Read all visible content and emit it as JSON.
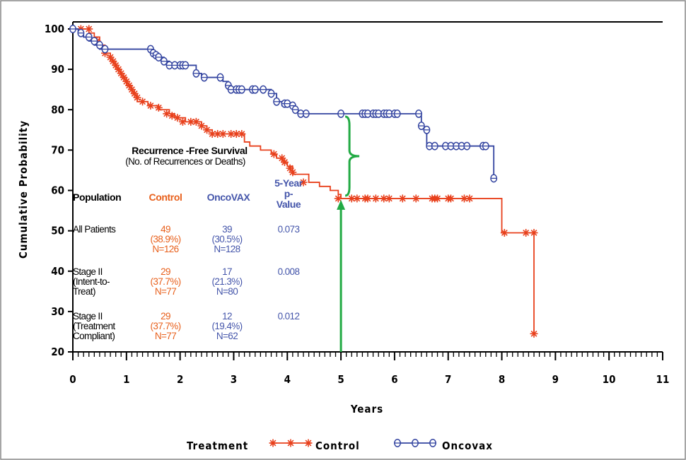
{
  "chart_data": {
    "type": "line",
    "subtype": "kaplan-meier step curve",
    "ylabel": "Cumulative Probability",
    "xlabel": "Years",
    "xlim": [
      0,
      11
    ],
    "ylim": [
      20,
      100
    ],
    "x_ticks": [
      "0",
      "1",
      "2",
      "3",
      "4",
      "5",
      "6",
      "7",
      "8",
      "9",
      "10",
      "11"
    ],
    "y_ticks": [
      "20",
      "30",
      "40",
      "50",
      "60",
      "70",
      "80",
      "90",
      "100"
    ],
    "grid": false,
    "legend_title": "Treatment",
    "series": [
      {
        "name": "Control",
        "color": "#e8401c",
        "marker": "asterisk",
        "steps": [
          [
            0,
            100
          ],
          [
            0.3,
            99
          ],
          [
            0.4,
            98
          ],
          [
            0.5,
            96
          ],
          [
            0.6,
            94
          ],
          [
            0.7,
            92
          ],
          [
            0.8,
            90
          ],
          [
            0.9,
            88
          ],
          [
            1.0,
            86
          ],
          [
            1.1,
            84
          ],
          [
            1.2,
            82
          ],
          [
            1.4,
            81
          ],
          [
            1.6,
            80
          ],
          [
            1.8,
            79
          ],
          [
            1.9,
            78
          ],
          [
            2.1,
            77
          ],
          [
            2.4,
            76
          ],
          [
            2.5,
            75
          ],
          [
            2.6,
            74
          ],
          [
            3.2,
            72
          ],
          [
            3.3,
            71
          ],
          [
            3.5,
            70
          ],
          [
            3.7,
            69
          ],
          [
            3.8,
            68
          ],
          [
            3.9,
            67
          ],
          [
            4.0,
            66
          ],
          [
            4.1,
            64
          ],
          [
            4.4,
            62
          ],
          [
            4.6,
            61
          ],
          [
            4.8,
            60
          ],
          [
            4.95,
            59
          ],
          [
            5.0,
            58
          ],
          [
            7.95,
            58
          ],
          [
            8.0,
            49.5
          ],
          [
            8.6,
            49.5
          ],
          [
            8.6,
            24.5
          ]
        ],
        "censored": [
          [
            0.15,
            100
          ],
          [
            0.3,
            100
          ],
          [
            0.45,
            97
          ],
          [
            0.6,
            94
          ],
          [
            0.7,
            93
          ],
          [
            0.75,
            92
          ],
          [
            0.8,
            91
          ],
          [
            0.85,
            90
          ],
          [
            0.9,
            89
          ],
          [
            0.95,
            88
          ],
          [
            1.0,
            87
          ],
          [
            1.05,
            86
          ],
          [
            1.1,
            85
          ],
          [
            1.15,
            84
          ],
          [
            1.2,
            83
          ],
          [
            1.3,
            82
          ],
          [
            1.45,
            81
          ],
          [
            1.6,
            80.5
          ],
          [
            1.75,
            79
          ],
          [
            1.85,
            78.5
          ],
          [
            1.95,
            78
          ],
          [
            2.05,
            77
          ],
          [
            2.2,
            77
          ],
          [
            2.3,
            77
          ],
          [
            2.4,
            76
          ],
          [
            2.5,
            75
          ],
          [
            2.6,
            74
          ],
          [
            2.7,
            74
          ],
          [
            2.8,
            74
          ],
          [
            2.95,
            74
          ],
          [
            3.05,
            74
          ],
          [
            3.15,
            74
          ],
          [
            3.75,
            69
          ],
          [
            3.9,
            68
          ],
          [
            3.95,
            67
          ],
          [
            4.05,
            65.5
          ],
          [
            4.1,
            64.5
          ],
          [
            4.3,
            62
          ],
          [
            4.95,
            58
          ],
          [
            5.2,
            58
          ],
          [
            5.3,
            58
          ],
          [
            5.45,
            58
          ],
          [
            5.5,
            58
          ],
          [
            5.65,
            58
          ],
          [
            5.8,
            58
          ],
          [
            5.9,
            58
          ],
          [
            6.15,
            58
          ],
          [
            6.4,
            58
          ],
          [
            6.7,
            58
          ],
          [
            6.75,
            58
          ],
          [
            6.8,
            58
          ],
          [
            7.0,
            58
          ],
          [
            7.05,
            58
          ],
          [
            7.3,
            58
          ],
          [
            7.4,
            58
          ],
          [
            8.05,
            49.5
          ],
          [
            8.45,
            49.5
          ],
          [
            8.6,
            49.5
          ],
          [
            8.6,
            24.5
          ]
        ]
      },
      {
        "name": "Oncovax",
        "color": "#3344a0",
        "marker": "circle",
        "steps": [
          [
            0,
            100
          ],
          [
            0.1,
            99
          ],
          [
            0.2,
            98
          ],
          [
            0.3,
            97
          ],
          [
            0.4,
            96
          ],
          [
            0.5,
            95
          ],
          [
            1.5,
            94
          ],
          [
            1.6,
            93
          ],
          [
            1.7,
            92
          ],
          [
            1.8,
            91
          ],
          [
            2.2,
            91
          ],
          [
            2.3,
            89
          ],
          [
            2.4,
            88
          ],
          [
            2.8,
            87
          ],
          [
            2.9,
            85
          ],
          [
            3.6,
            85
          ],
          [
            3.7,
            84
          ],
          [
            3.8,
            82
          ],
          [
            3.9,
            81
          ],
          [
            4.1,
            80
          ],
          [
            4.2,
            79
          ],
          [
            6.45,
            79
          ],
          [
            6.5,
            76
          ],
          [
            6.55,
            75
          ],
          [
            6.6,
            71
          ],
          [
            7.85,
            71
          ],
          [
            7.85,
            63
          ]
        ],
        "censored": [
          [
            0.0,
            100
          ],
          [
            0.15,
            99
          ],
          [
            0.3,
            98
          ],
          [
            0.4,
            97
          ],
          [
            0.5,
            96
          ],
          [
            0.6,
            95
          ],
          [
            1.45,
            95
          ],
          [
            1.5,
            94
          ],
          [
            1.55,
            93.5
          ],
          [
            1.6,
            93
          ],
          [
            1.7,
            92
          ],
          [
            1.8,
            91
          ],
          [
            1.9,
            91
          ],
          [
            2.0,
            91
          ],
          [
            2.05,
            91
          ],
          [
            2.1,
            91
          ],
          [
            2.3,
            89
          ],
          [
            2.45,
            88
          ],
          [
            2.75,
            88
          ],
          [
            2.9,
            86
          ],
          [
            2.95,
            85
          ],
          [
            3.05,
            85
          ],
          [
            3.1,
            85
          ],
          [
            3.15,
            85
          ],
          [
            3.35,
            85
          ],
          [
            3.4,
            85
          ],
          [
            3.55,
            85
          ],
          [
            3.7,
            84
          ],
          [
            3.8,
            82
          ],
          [
            3.95,
            81.5
          ],
          [
            4.0,
            81.5
          ],
          [
            4.1,
            81
          ],
          [
            4.15,
            80
          ],
          [
            4.25,
            79
          ],
          [
            4.35,
            79
          ],
          [
            5.0,
            79
          ],
          [
            5.4,
            79
          ],
          [
            5.45,
            79
          ],
          [
            5.5,
            79
          ],
          [
            5.6,
            79
          ],
          [
            5.65,
            79
          ],
          [
            5.7,
            79
          ],
          [
            5.8,
            79
          ],
          [
            5.85,
            79
          ],
          [
            5.9,
            79
          ],
          [
            6.0,
            79
          ],
          [
            6.05,
            79
          ],
          [
            6.45,
            79
          ],
          [
            6.5,
            76
          ],
          [
            6.6,
            75
          ],
          [
            6.65,
            71
          ],
          [
            6.75,
            71
          ],
          [
            6.95,
            71
          ],
          [
            7.05,
            71
          ],
          [
            7.15,
            71
          ],
          [
            7.25,
            71
          ],
          [
            7.35,
            71
          ],
          [
            7.65,
            71
          ],
          [
            7.7,
            71
          ],
          [
            7.85,
            63
          ]
        ]
      }
    ],
    "annotation": {
      "title": "Recurrence -Free Survival",
      "subtitle": "(No. of Recurrences or Deaths)",
      "arrow_x": 5,
      "brace_top": 79,
      "brace_bottom": 58
    },
    "table": {
      "headers": [
        "Population",
        "Control",
        "OncoVAX",
        "5-Year\np-\nValue"
      ],
      "rows": [
        {
          "population": [
            "All Patients"
          ],
          "control": [
            "49",
            "(38.9%)",
            "N=126"
          ],
          "oncovax": [
            "39",
            "(30.5%)",
            "N=128"
          ],
          "p": "0.073"
        },
        {
          "population": [
            "Stage II",
            "(Intent-to-",
            "Treat)"
          ],
          "control": [
            "29",
            "(37.7%)",
            "N=77"
          ],
          "oncovax": [
            "17",
            "(21.3%)",
            "N=80"
          ],
          "p": "0.008"
        },
        {
          "population": [
            "Stage II",
            "(Treatment",
            "Compliant)"
          ],
          "control": [
            "29",
            "(37.7%)",
            "N=77"
          ],
          "oncovax": [
            "12",
            "(19.4%)",
            "N=62"
          ],
          "p": "0.012"
        }
      ]
    },
    "colors": {
      "control": "#e8401c",
      "oncovax": "#3344a0",
      "arrow": "#22aa44",
      "control_text": "#e8601c",
      "oncovax_text": "#4455aa"
    }
  }
}
